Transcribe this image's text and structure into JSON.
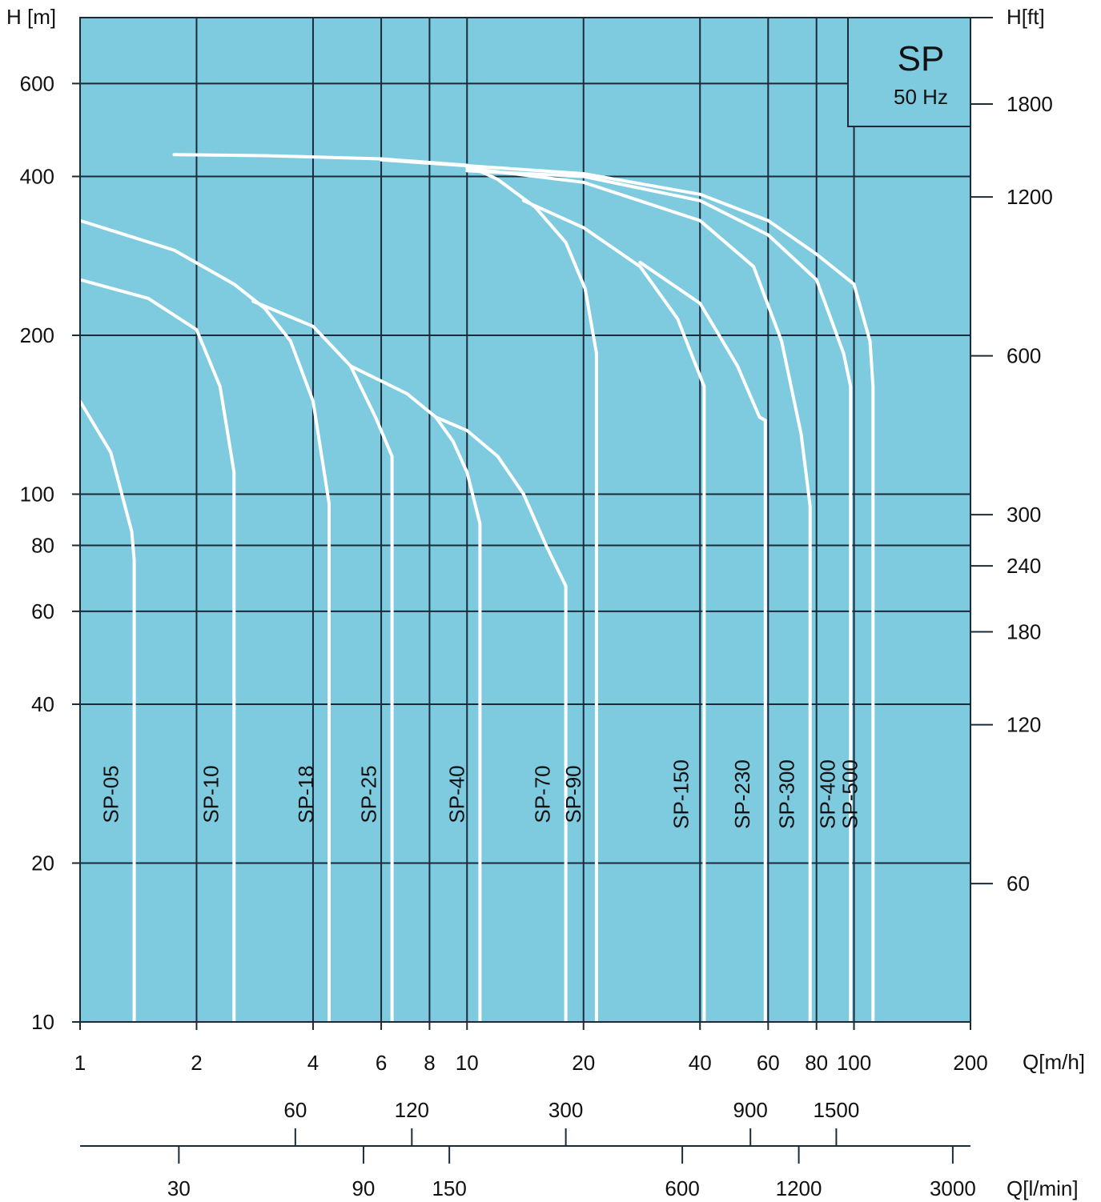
{
  "chart_data": {
    "type": "line",
    "title": "SP",
    "subtitle": "50 Hz",
    "colors": {
      "background": "#7ecbe0",
      "grid": "#1a2b3a",
      "curve": "#ffffff",
      "text": "#111111"
    },
    "y_left": {
      "label": "H  [m]",
      "scale": "log",
      "range": [
        10,
        800
      ],
      "ticks": [
        "10",
        "20",
        "40",
        "60",
        "80",
        "100",
        "200",
        "400",
        "600"
      ]
    },
    "y_right": {
      "label": "H[ft]",
      "ticks": [
        "60",
        "120",
        "180",
        "240",
        "300",
        "600",
        "1200",
        "1800"
      ]
    },
    "x": {
      "label": "Q[m/h]",
      "scale": "log",
      "range": [
        1,
        200
      ],
      "ticks": [
        "1",
        "2",
        "4",
        "6",
        "8",
        "10",
        "20",
        "40",
        "60",
        "80",
        "100",
        "200"
      ]
    },
    "x_lpm": {
      "label": "Q[l/min]",
      "ticks_upper": [
        "60",
        "120",
        "300",
        "900",
        "1500"
      ],
      "ticks_lower": [
        "30",
        "90",
        "150",
        "600",
        "1200",
        "3000"
      ]
    },
    "grid": true,
    "series": [
      {
        "name": "SP-05",
        "points": [
          [
            1,
            150
          ],
          [
            1.2,
            120
          ],
          [
            1.36,
            85
          ],
          [
            1.38,
            75
          ],
          [
            1.38,
            10
          ]
        ]
      },
      {
        "name": "SP-10",
        "points": [
          [
            1,
            255
          ],
          [
            1.5,
            235
          ],
          [
            2,
            205
          ],
          [
            2.3,
            160
          ],
          [
            2.5,
            110
          ],
          [
            2.5,
            10
          ]
        ]
      },
      {
        "name": "SP-18",
        "points": [
          [
            1,
            330
          ],
          [
            1.75,
            290
          ],
          [
            2.5,
            250
          ],
          [
            3,
            225
          ],
          [
            3.5,
            195
          ],
          [
            4,
            150
          ],
          [
            4.4,
            96
          ],
          [
            4.4,
            10
          ]
        ]
      },
      {
        "name": "SP-25",
        "points": [
          [
            2.8,
            232
          ],
          [
            4,
            208
          ],
          [
            5,
            175
          ],
          [
            5.8,
            140
          ],
          [
            6.4,
            118
          ],
          [
            6.4,
            10
          ]
        ]
      },
      {
        "name": "SP-40",
        "points": [
          [
            5,
            175
          ],
          [
            7,
            155
          ],
          [
            8.3,
            140
          ],
          [
            9.2,
            126
          ],
          [
            10,
            110
          ],
          [
            10.8,
            88
          ],
          [
            10.8,
            10
          ]
        ]
      },
      {
        "name": "SP-70",
        "points": [
          [
            8.3,
            140
          ],
          [
            10,
            132
          ],
          [
            12,
            118
          ],
          [
            14,
            100
          ],
          [
            16,
            80
          ],
          [
            18,
            67
          ],
          [
            18,
            10
          ]
        ]
      },
      {
        "name": "SP-90",
        "points": [
          [
            1.75,
            440
          ],
          [
            3,
            438
          ],
          [
            6,
            432
          ],
          [
            10,
            420
          ],
          [
            12,
            395
          ],
          [
            15,
            350
          ],
          [
            18,
            300
          ],
          [
            20.2,
            245
          ],
          [
            21.6,
            185
          ],
          [
            21.6,
            10
          ]
        ]
      },
      {
        "name": "SP-150",
        "points": [
          [
            14,
            360
          ],
          [
            20,
            320
          ],
          [
            28,
            270
          ],
          [
            35,
            215
          ],
          [
            41,
            160
          ],
          [
            41,
            10
          ]
        ]
      },
      {
        "name": "SP-230",
        "points": [
          [
            28,
            275
          ],
          [
            40,
            230
          ],
          [
            50,
            175
          ],
          [
            57,
            140
          ],
          [
            59,
            138
          ],
          [
            59,
            10
          ]
        ]
      },
      {
        "name": "SP-300",
        "points": [
          [
            10,
            415
          ],
          [
            20,
            390
          ],
          [
            40,
            330
          ],
          [
            55,
            270
          ],
          [
            65,
            195
          ],
          [
            73,
            130
          ],
          [
            77,
            95
          ],
          [
            77,
            10
          ]
        ]
      },
      {
        "name": "SP-400",
        "points": [
          [
            10,
            410
          ],
          [
            20,
            400
          ],
          [
            40,
            360
          ],
          [
            60,
            310
          ],
          [
            80,
            255
          ],
          [
            94,
            185
          ],
          [
            98,
            160
          ],
          [
            98,
            10
          ]
        ]
      },
      {
        "name": "SP-500",
        "points": [
          [
            6,
            430
          ],
          [
            20,
            405
          ],
          [
            40,
            370
          ],
          [
            60,
            330
          ],
          [
            80,
            285
          ],
          [
            100,
            250
          ],
          [
            110,
            195
          ],
          [
            112,
            160
          ],
          [
            112,
            10
          ]
        ]
      }
    ]
  }
}
